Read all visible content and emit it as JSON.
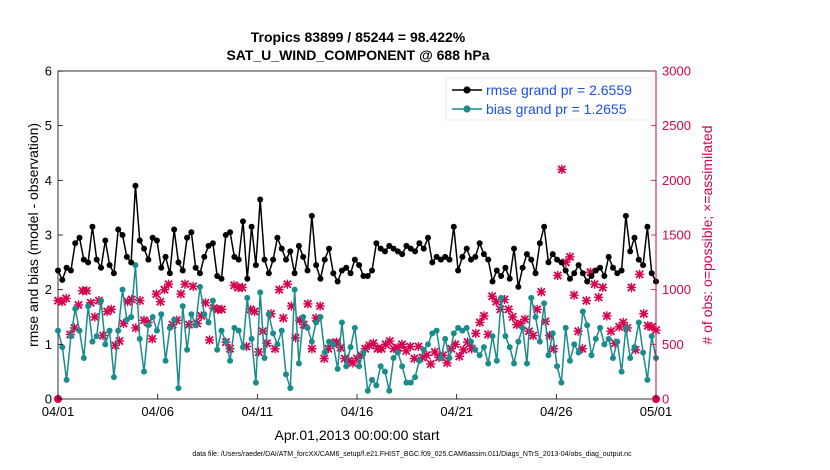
{
  "chart_data": {
    "type": "line",
    "title": "Tropics 83899 / 85244 = 98.422%",
    "subtitle": "SAT_U_WIND_COMPONENT @ 688 hPa",
    "xlabel": "Apr.01,2013 00:00:00 start",
    "ylabel": "rmse and bias (model - observation)",
    "y2label": "# of obs: o=possible; ×=assimilated",
    "x_ticks": [
      "04/01",
      "04/06",
      "04/11",
      "04/16",
      "04/21",
      "04/26",
      "05/01"
    ],
    "y_ticks": [
      "0",
      "1",
      "2",
      "3",
      "4",
      "5",
      "6"
    ],
    "y2_ticks": [
      "0",
      "500",
      "1000",
      "1500",
      "2000",
      "2500",
      "3000"
    ],
    "xlim": [
      0,
      30
    ],
    "ylim": [
      0,
      6
    ],
    "y2lim": [
      0,
      3000
    ],
    "footnote": "data file: /Users/raeder/DAI/ATM_forcXX/CAM6_setup/f.e21.FHIST_BGC.f09_025.CAM6assim.011/Diags_NTrS_2013-04/obs_diag_output.nc",
    "colors": {
      "rmse": "#000000",
      "bias": "#1a8c8c",
      "obs": "#d6004f"
    },
    "series": [
      {
        "name": "rmse grand pr = 2.6559",
        "axis": "left",
        "values": [
          2.35,
          2.18,
          2.4,
          2.35,
          2.85,
          2.95,
          2.55,
          2.5,
          3.15,
          2.55,
          2.4,
          2.9,
          2.45,
          2.3,
          3.1,
          3.0,
          2.6,
          2.5,
          3.9,
          2.9,
          2.75,
          2.55,
          2.95,
          2.9,
          2.4,
          2.6,
          2.3,
          3.1,
          2.5,
          2.35,
          2.95,
          3.05,
          2.4,
          2.3,
          2.6,
          2.8,
          2.85,
          2.25,
          2.2,
          3.0,
          3.05,
          2.6,
          2.55,
          3.25,
          2.2,
          3.15,
          2.45,
          3.65,
          2.55,
          2.3,
          2.55,
          2.95,
          2.75,
          2.55,
          2.7,
          2.3,
          2.8,
          2.6,
          2.35,
          3.35,
          2.45,
          2.2,
          2.55,
          2.75,
          2.3,
          2.15,
          2.35,
          2.4,
          2.3,
          2.55,
          2.45,
          2.25,
          2.25,
          2.35,
          2.85,
          2.75,
          2.7,
          2.8,
          2.75,
          2.7,
          2.65,
          2.8,
          2.75,
          2.7,
          2.85,
          2.75,
          2.95,
          2.5,
          2.6,
          2.55,
          2.6,
          2.55,
          3.15,
          2.35,
          2.6,
          2.75,
          2.55,
          2.6,
          2.85,
          2.65,
          2.55,
          2.15,
          2.35,
          2.25,
          2.4,
          2.2,
          2.75,
          2.05,
          2.4,
          2.65,
          2.55,
          2.3,
          2.85,
          3.15,
          2.5,
          2.65,
          2.55,
          2.5,
          2.35,
          2.2,
          2.3,
          2.45,
          2.3,
          2.15,
          2.25,
          2.35,
          2.4,
          2.25,
          2.6,
          2.4,
          2.3,
          2.35,
          3.35,
          2.7,
          2.95,
          2.55,
          2.45,
          3.15,
          2.3,
          2.15
        ]
      },
      {
        "name": "bias grand pr = 1.2655",
        "axis": "left",
        "values": [
          1.25,
          0.95,
          0.35,
          1.15,
          1.65,
          1.25,
          0.75,
          1.7,
          1.05,
          1.15,
          1.8,
          1.0,
          1.25,
          0.4,
          1.25,
          2.0,
          1.45,
          1.5,
          2.45,
          1.1,
          0.5,
          1.35,
          1.5,
          1.25,
          1.55,
          0.7,
          1.3,
          1.45,
          0.2,
          1.7,
          0.9,
          1.55,
          1.35,
          2.05,
          1.55,
          1.4,
          1.8,
          0.9,
          1.25,
          1.05,
          0.7,
          1.3,
          1.25,
          0.95,
          1.85,
          1.1,
          0.3,
          1.95,
          0.75,
          1.55,
          1.2,
          1.0,
          1.25,
          0.45,
          0.2,
          2.0,
          0.65,
          1.5,
          1.3,
          1.05,
          1.4,
          1.5,
          0.85,
          1.05,
          1.0,
          0.55,
          1.4,
          0.6,
          0.95,
          1.3,
          0.6,
          0.85,
          0.15,
          0.35,
          0.25,
          0.6,
          0.5,
          0.15,
          0.75,
          0.85,
          0.6,
          0.3,
          0.3,
          0.4,
          0.7,
          0.9,
          1.0,
          1.2,
          1.25,
          0.75,
          1.1,
          0.75,
          1.2,
          1.3,
          1.25,
          1.3,
          1.05,
          0.9,
          0.8,
          0.95,
          0.65,
          1.15,
          0.7,
          1.85,
          1.15,
          0.95,
          0.65,
          1.05,
          1.3,
          0.65,
          1.85,
          1.5,
          1.05,
          1.75,
          0.8,
          1.2,
          0.6,
          0.3,
          1.3,
          0.7,
          1.0,
          0.85,
          1.6,
          1.35,
          0.8,
          1.1,
          1.3,
          1.0,
          1.1,
          0.75,
          1.05,
          0.5,
          1.3,
          0.75,
          0.95,
          1.4,
          0.85,
          0.35,
          1.15,
          0.75
        ]
      },
      {
        "name": "obs possible",
        "axis": "right",
        "values": [
          0
        ]
      },
      {
        "name": "obs assimilated",
        "axis": "right",
        "values": [
          900,
          890,
          920,
          590,
          650,
          860,
          990,
          990,
          880,
          750,
          900,
          580,
          800,
          820,
          490,
          530,
          690,
          890,
          910,
          650,
          900,
          720,
          700,
          550,
          960,
          890,
          1000,
          1050,
          680,
          720,
          960,
          1050,
          680,
          1030,
          690,
          760,
          880,
          540,
          830,
          820,
          820,
          520,
          460,
          1040,
          1020,
          1020,
          480,
          820,
          800,
          430,
          620,
          510,
          780,
          460,
          1000,
          740,
          1050,
          850,
          560,
          720,
          680,
          870,
          460,
          740,
          850,
          370,
          460,
          510,
          520,
          470,
          370,
          350,
          330,
          370,
          400,
          460,
          490,
          510,
          460,
          460,
          500,
          530,
          460,
          470,
          500,
          440,
          480,
          370,
          480,
          380,
          400,
          320,
          430,
          380,
          400,
          330,
          460,
          500,
          390,
          450,
          520,
          460,
          600,
          700,
          760,
          590,
          940,
          890,
          820,
          910,
          820,
          750,
          680,
          690,
          730,
          620,
          580,
          820,
          980,
          710,
          580,
          460,
          1130,
          2100,
          1250,
          1300,
          950,
          620,
          460,
          900,
          1160,
          1050,
          930,
          1020,
          760,
          620,
          510,
          660,
          700,
          650,
          1020,
          450,
          1140,
          780,
          670,
          660,
          630
        ]
      }
    ]
  }
}
